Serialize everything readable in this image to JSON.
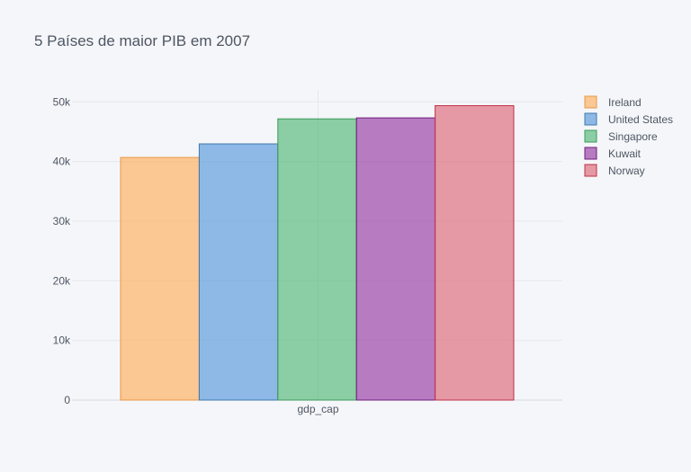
{
  "chart_data": {
    "type": "bar",
    "title": "5 Países de maior PIB em 2007",
    "xlabel": "",
    "ylabel": "",
    "categories": [
      "gdp_cap"
    ],
    "ylim": [
      0,
      52000
    ],
    "y_ticks": [
      0,
      10000,
      20000,
      30000,
      40000,
      50000
    ],
    "y_tick_labels": [
      "0",
      "10k",
      "20k",
      "30k",
      "40k",
      "50k"
    ],
    "grid": true,
    "legend_position": "top-right",
    "series": [
      {
        "name": "Ireland",
        "values": [
          40676
        ],
        "color": "#ffa94d",
        "line_color": "#e69a45"
      },
      {
        "name": "United States",
        "values": [
          42952
        ],
        "color": "#4a90d9",
        "line_color": "#3f79ad"
      },
      {
        "name": "Singapore",
        "values": [
          47143
        ],
        "color": "#45b26b",
        "line_color": "#3b9a5c"
      },
      {
        "name": "Kuwait",
        "values": [
          47307
        ],
        "color": "#8e2a9c",
        "line_color": "#6d1f7a"
      },
      {
        "name": "Norway",
        "values": [
          49357
        ],
        "color": "#db5b6b",
        "line_color": "#c03048"
      }
    ]
  }
}
